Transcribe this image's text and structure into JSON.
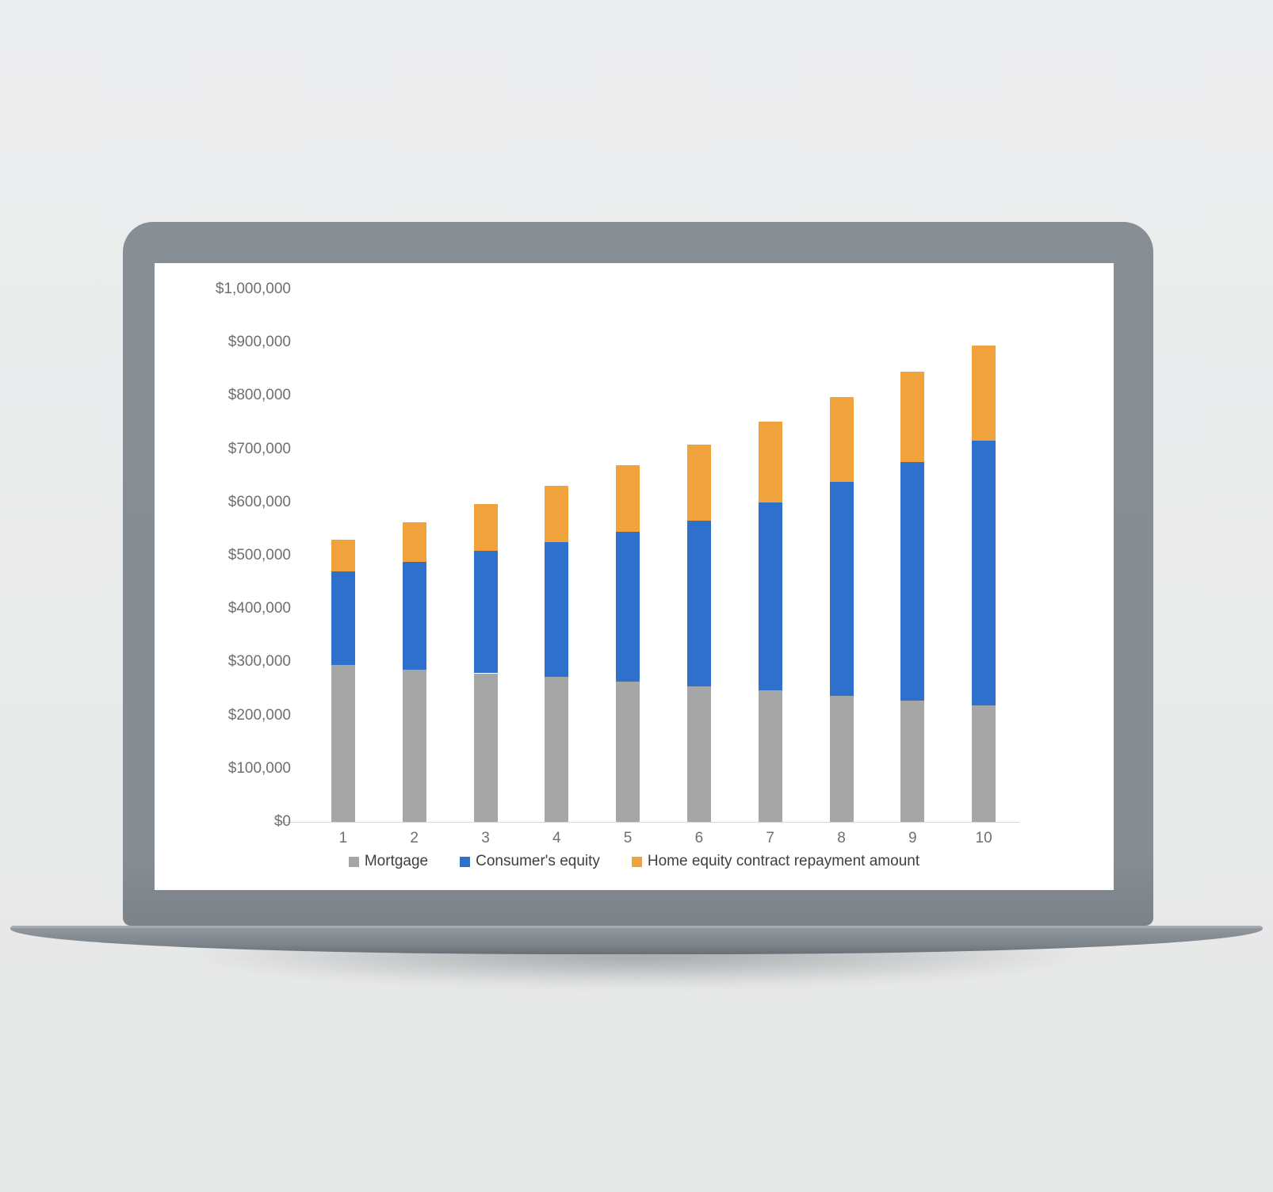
{
  "mockup": {
    "device": "laptop",
    "frame_color": "#868d93",
    "screen_color": "#ffffff",
    "background_color": "#e9eaea"
  },
  "chart_data": {
    "type": "bar",
    "stacked": true,
    "title": "",
    "xlabel": "",
    "ylabel": "",
    "categories": [
      "1",
      "2",
      "3",
      "4",
      "5",
      "6",
      "7",
      "8",
      "9",
      "10"
    ],
    "series": [
      {
        "name": "Mortgage",
        "color": "#a6a6a6",
        "values": [
          294000,
          286000,
          279000,
          272000,
          263000,
          255000,
          247000,
          237000,
          228000,
          219000
        ]
      },
      {
        "name": "Consumer's equity",
        "color": "#2f70cd",
        "values": [
          176000,
          202000,
          230000,
          254000,
          281000,
          311000,
          353000,
          401000,
          447000,
          497000
        ]
      },
      {
        "name": "Home equity contract repayment amount",
        "color": "#f0a33d",
        "values": [
          60000,
          74000,
          87000,
          105000,
          125000,
          143000,
          152000,
          159000,
          170000,
          179000
        ]
      }
    ],
    "stack_totals": [
      530000,
      562000,
      596000,
      631000,
      669000,
      709000,
      752000,
      797000,
      845000,
      895000
    ],
    "ylim": [
      0,
      1000000
    ],
    "y_tick_step": 100000,
    "y_tick_labels": [
      "$0",
      "$100,000",
      "$200,000",
      "$300,000",
      "$400,000",
      "$500,000",
      "$600,000",
      "$700,000",
      "$800,000",
      "$900,000",
      "$1,000,000"
    ],
    "grid": false,
    "legend_position": "bottom",
    "axis_text_color": "#6f6f6f",
    "legend_text_color": "#3f3f3f",
    "axis_line_color": "#d8d8d8"
  }
}
